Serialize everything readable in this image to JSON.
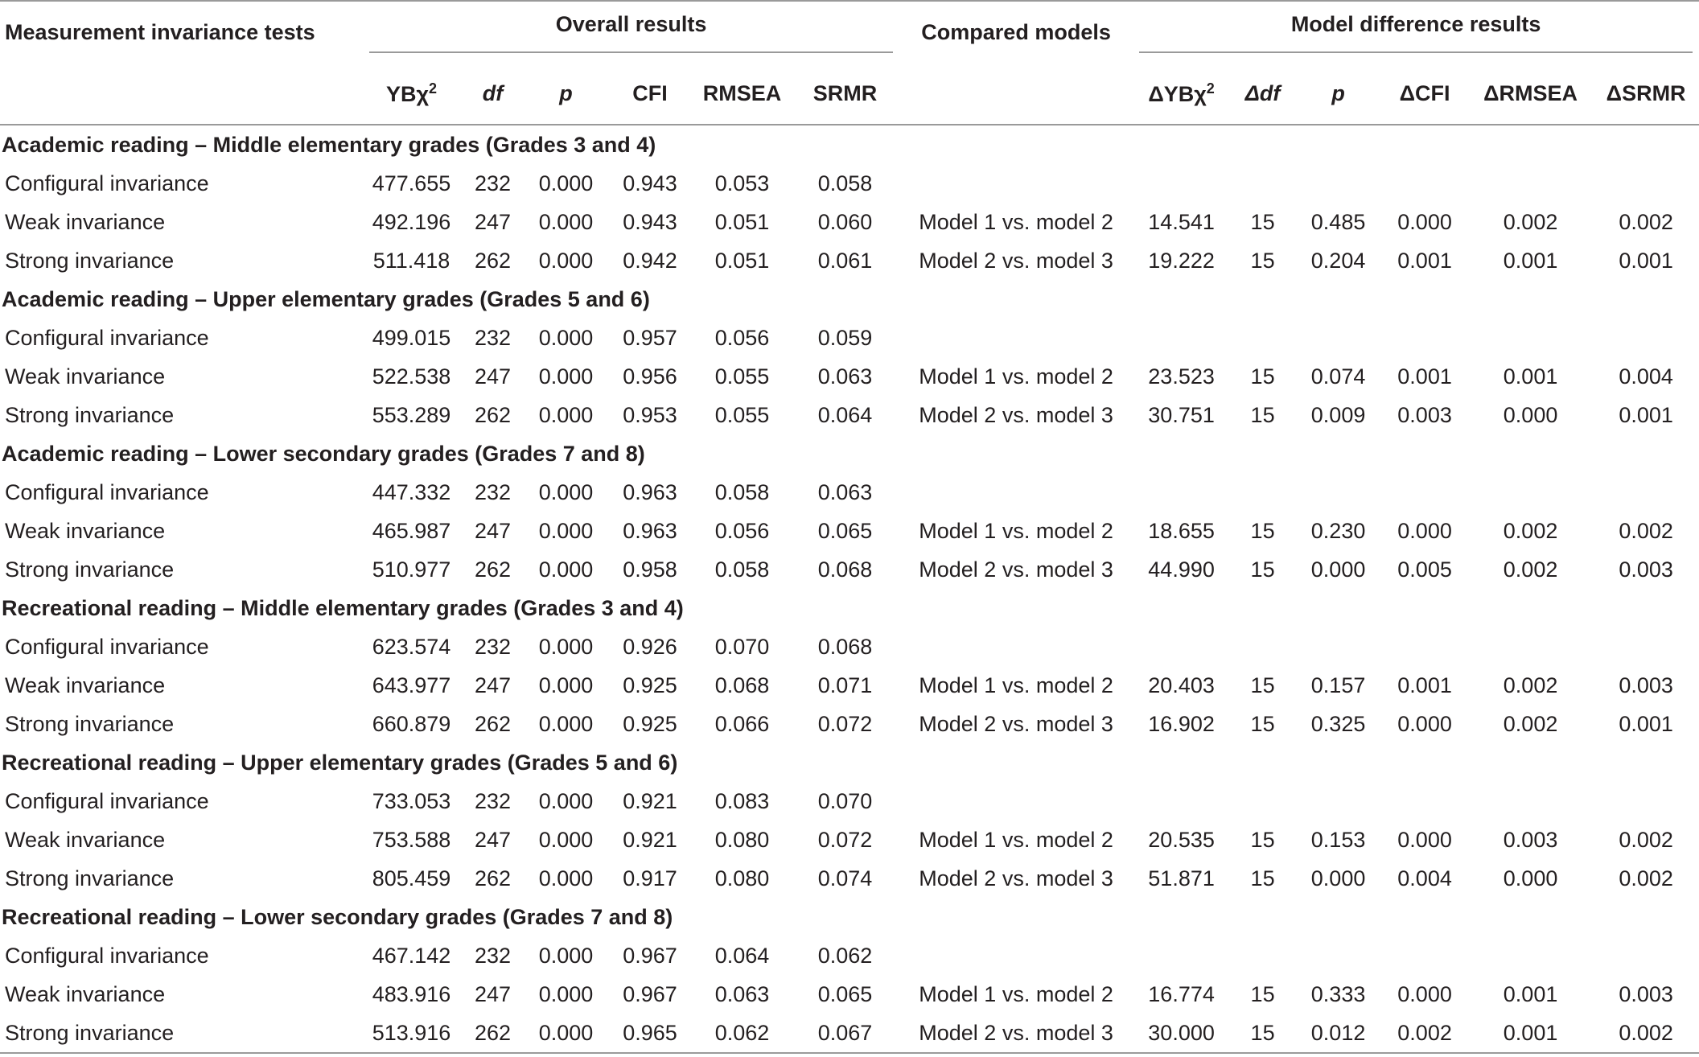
{
  "table": {
    "header": {
      "groups": [
        "Measurement invariance tests",
        "Overall results",
        "Compared models",
        "Model difference results"
      ],
      "overall_columns": [
        {
          "text": "YBχ",
          "sup": "2"
        },
        {
          "text": "df",
          "italic": true
        },
        {
          "text": "p",
          "italic": true
        },
        {
          "text": "CFI"
        },
        {
          "text": "RMSEA"
        },
        {
          "text": "SRMR"
        }
      ],
      "difference_columns": [
        {
          "text": "ΔYBχ",
          "sup": "2"
        },
        {
          "text": "Δdf",
          "italic": true
        },
        {
          "text": "p",
          "italic": true
        },
        {
          "text": "ΔCFI"
        },
        {
          "text": "ΔRMSEA"
        },
        {
          "text": "ΔSRMR"
        }
      ]
    },
    "sections": [
      {
        "title": "Academic reading – Middle elementary grades (Grades 3 and 4)",
        "rows": [
          {
            "label": "Configural invariance",
            "overall": [
              "477.655",
              "232",
              "0.000",
              "0.943",
              "0.053",
              "0.058"
            ]
          },
          {
            "label": "Weak invariance",
            "overall": [
              "492.196",
              "247",
              "0.000",
              "0.943",
              "0.051",
              "0.060"
            ],
            "compared": "Model 1 vs. model 2",
            "difference": [
              "14.541",
              "15",
              "0.485",
              "0.000",
              "0.002",
              "0.002"
            ]
          },
          {
            "label": "Strong invariance",
            "overall": [
              "511.418",
              "262",
              "0.000",
              "0.942",
              "0.051",
              "0.061"
            ],
            "compared": "Model 2 vs. model 3",
            "difference": [
              "19.222",
              "15",
              "0.204",
              "0.001",
              "0.001",
              "0.001"
            ]
          }
        ]
      },
      {
        "title": "Academic reading – Upper elementary grades (Grades 5 and 6)",
        "rows": [
          {
            "label": "Configural invariance",
            "overall": [
              "499.015",
              "232",
              "0.000",
              "0.957",
              "0.056",
              "0.059"
            ]
          },
          {
            "label": "Weak invariance",
            "overall": [
              "522.538",
              "247",
              "0.000",
              "0.956",
              "0.055",
              "0.063"
            ],
            "compared": "Model 1 vs. model 2",
            "difference": [
              "23.523",
              "15",
              "0.074",
              "0.001",
              "0.001",
              "0.004"
            ]
          },
          {
            "label": "Strong invariance",
            "overall": [
              "553.289",
              "262",
              "0.000",
              "0.953",
              "0.055",
              "0.064"
            ],
            "compared": "Model 2 vs. model 3",
            "difference": [
              "30.751",
              "15",
              "0.009",
              "0.003",
              "0.000",
              "0.001"
            ]
          }
        ]
      },
      {
        "title": "Academic reading – Lower secondary grades (Grades 7 and 8)",
        "rows": [
          {
            "label": "Configural invariance",
            "overall": [
              "447.332",
              "232",
              "0.000",
              "0.963",
              "0.058",
              "0.063"
            ]
          },
          {
            "label": "Weak invariance",
            "overall": [
              "465.987",
              "247",
              "0.000",
              "0.963",
              "0.056",
              "0.065"
            ],
            "compared": "Model 1 vs. model 2",
            "difference": [
              "18.655",
              "15",
              "0.230",
              "0.000",
              "0.002",
              "0.002"
            ]
          },
          {
            "label": "Strong invariance",
            "overall": [
              "510.977",
              "262",
              "0.000",
              "0.958",
              "0.058",
              "0.068"
            ],
            "compared": "Model 2 vs. model 3",
            "difference": [
              "44.990",
              "15",
              "0.000",
              "0.005",
              "0.002",
              "0.003"
            ]
          }
        ]
      },
      {
        "title": "Recreational reading – Middle elementary grades (Grades 3 and 4)",
        "rows": [
          {
            "label": "Configural invariance",
            "overall": [
              "623.574",
              "232",
              "0.000",
              "0.926",
              "0.070",
              "0.068"
            ]
          },
          {
            "label": "Weak invariance",
            "overall": [
              "643.977",
              "247",
              "0.000",
              "0.925",
              "0.068",
              "0.071"
            ],
            "compared": "Model 1 vs. model 2",
            "difference": [
              "20.403",
              "15",
              "0.157",
              "0.001",
              "0.002",
              "0.003"
            ]
          },
          {
            "label": "Strong invariance",
            "overall": [
              "660.879",
              "262",
              "0.000",
              "0.925",
              "0.066",
              "0.072"
            ],
            "compared": "Model 2 vs. model 3",
            "difference": [
              "16.902",
              "15",
              "0.325",
              "0.000",
              "0.002",
              "0.001"
            ]
          }
        ]
      },
      {
        "title": "Recreational reading – Upper elementary grades (Grades 5 and 6)",
        "rows": [
          {
            "label": "Configural invariance",
            "overall": [
              "733.053",
              "232",
              "0.000",
              "0.921",
              "0.083",
              "0.070"
            ]
          },
          {
            "label": "Weak invariance",
            "overall": [
              "753.588",
              "247",
              "0.000",
              "0.921",
              "0.080",
              "0.072"
            ],
            "compared": "Model 1 vs. model 2",
            "difference": [
              "20.535",
              "15",
              "0.153",
              "0.000",
              "0.003",
              "0.002"
            ]
          },
          {
            "label": "Strong invariance",
            "overall": [
              "805.459",
              "262",
              "0.000",
              "0.917",
              "0.080",
              "0.074"
            ],
            "compared": "Model 2 vs. model 3",
            "difference": [
              "51.871",
              "15",
              "0.000",
              "0.004",
              "0.000",
              "0.002"
            ]
          }
        ]
      },
      {
        "title": "Recreational reading – Lower secondary grades (Grades 7 and 8)",
        "rows": [
          {
            "label": "Configural invariance",
            "overall": [
              "467.142",
              "232",
              "0.000",
              "0.967",
              "0.064",
              "0.062"
            ]
          },
          {
            "label": "Weak invariance",
            "overall": [
              "483.916",
              "247",
              "0.000",
              "0.967",
              "0.063",
              "0.065"
            ],
            "compared": "Model 1 vs. model 2",
            "difference": [
              "16.774",
              "15",
              "0.333",
              "0.000",
              "0.001",
              "0.003"
            ]
          },
          {
            "label": "Strong invariance",
            "overall": [
              "513.916",
              "262",
              "0.000",
              "0.965",
              "0.062",
              "0.067"
            ],
            "compared": "Model 2 vs. model 3",
            "difference": [
              "30.000",
              "15",
              "0.012",
              "0.002",
              "0.001",
              "0.002"
            ]
          }
        ]
      }
    ]
  }
}
